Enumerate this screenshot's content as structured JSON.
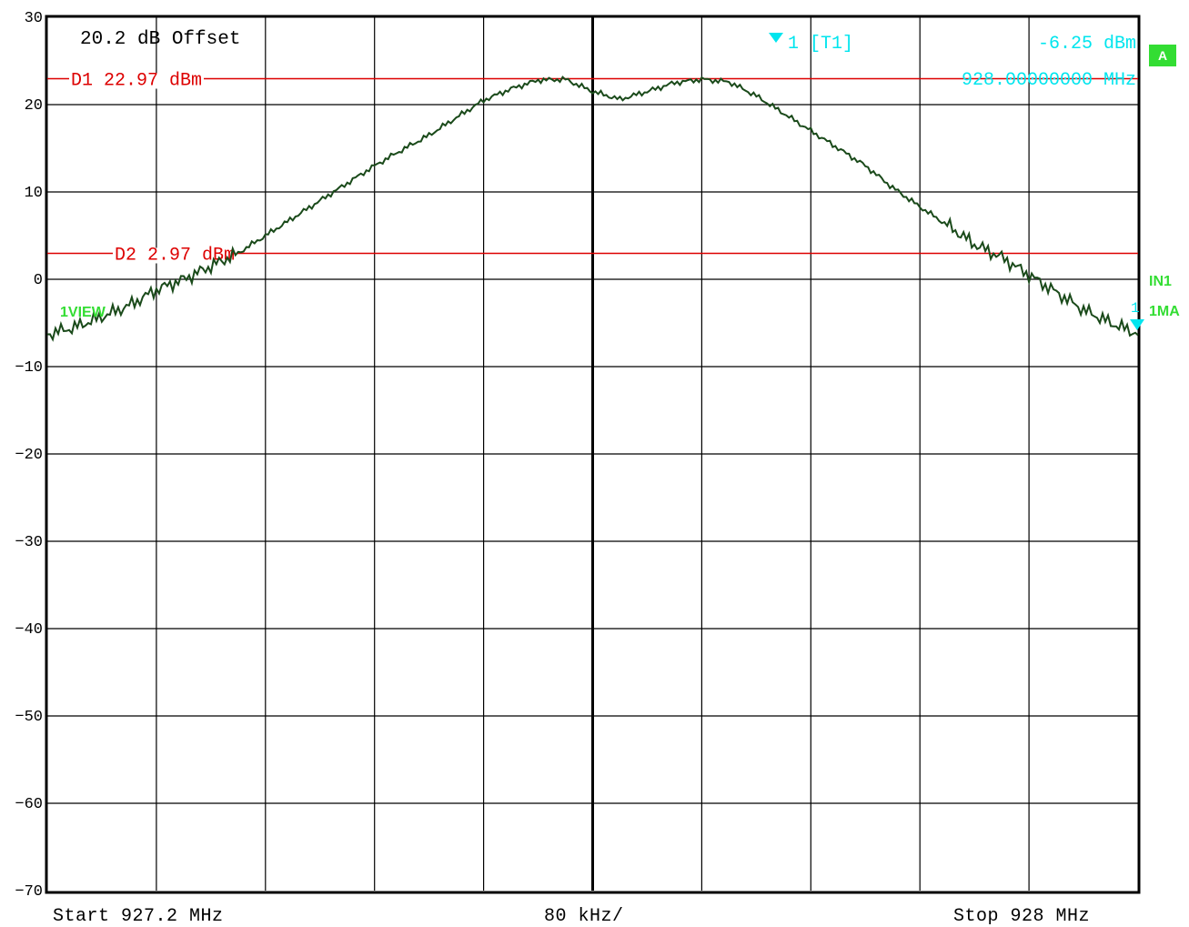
{
  "header": {
    "offset_text": "20.2 dB Offset",
    "marker_label": "1 [T1]",
    "marker_level": "-6.25 dBm",
    "marker_freq": "928.00000000 MHz"
  },
  "side_labels": {
    "badge": "A",
    "input": "IN1",
    "trace_mode": "1MA",
    "trace_marker_number": "1",
    "view_label": "1VIEW"
  },
  "footer": {
    "start": "Start 927.2 MHz",
    "span": "80 kHz/",
    "stop": "Stop 928 MHz"
  },
  "colors": {
    "trace": "#1a4a1a",
    "display_line": "#dd0000",
    "marker": "#00e5ee",
    "status_green": "#33dd33",
    "grid": "#000000"
  },
  "chart_data": {
    "type": "line",
    "title": "",
    "xlabel": "",
    "ylabel": "",
    "xlim": [
      927.2,
      928.0
    ],
    "ylim": [
      -70,
      30
    ],
    "x_unit": "MHz",
    "y_unit": "dBm",
    "y_ticks": [
      "30",
      "20",
      "10",
      "0",
      "-10",
      "-20",
      "-30",
      "-40",
      "-50",
      "-60",
      "-70"
    ],
    "grid": true,
    "display_lines": [
      {
        "name": "D1",
        "label": "D1 22.97 dBm",
        "value": 22.97
      },
      {
        "name": "D2",
        "label": "D2 2.97 dBm",
        "value": 2.97
      }
    ],
    "marker": {
      "label": "1",
      "x": 928.0,
      "y": -6.25
    },
    "series": [
      {
        "x": [
          927.2,
          927.22,
          927.24,
          927.26,
          927.28,
          927.3,
          927.32,
          927.34,
          927.36,
          927.38,
          927.4,
          927.42,
          927.44,
          927.46,
          927.48,
          927.5,
          927.52,
          927.54,
          927.56,
          927.58,
          927.6,
          927.62,
          927.64,
          927.66,
          927.68,
          927.7,
          927.72,
          927.74,
          927.76,
          927.78,
          927.8,
          927.82,
          927.84,
          927.86,
          927.88,
          927.9,
          927.92,
          927.94,
          927.96,
          927.98,
          928.0
        ],
        "values": [
          -6.3,
          -5.5,
          -4.3,
          -3.0,
          -1.2,
          0.0,
          1.5,
          3.0,
          5.0,
          7.0,
          9.0,
          11.0,
          13.0,
          14.8,
          16.5,
          18.5,
          20.5,
          21.8,
          22.8,
          22.9,
          21.5,
          20.6,
          21.5,
          22.5,
          22.9,
          22.6,
          21.0,
          19.0,
          17.0,
          15.0,
          13.0,
          10.5,
          8.3,
          6.2,
          4.0,
          2.5,
          0.5,
          -1.5,
          -3.5,
          -5.0,
          -6.25
        ]
      }
    ]
  }
}
